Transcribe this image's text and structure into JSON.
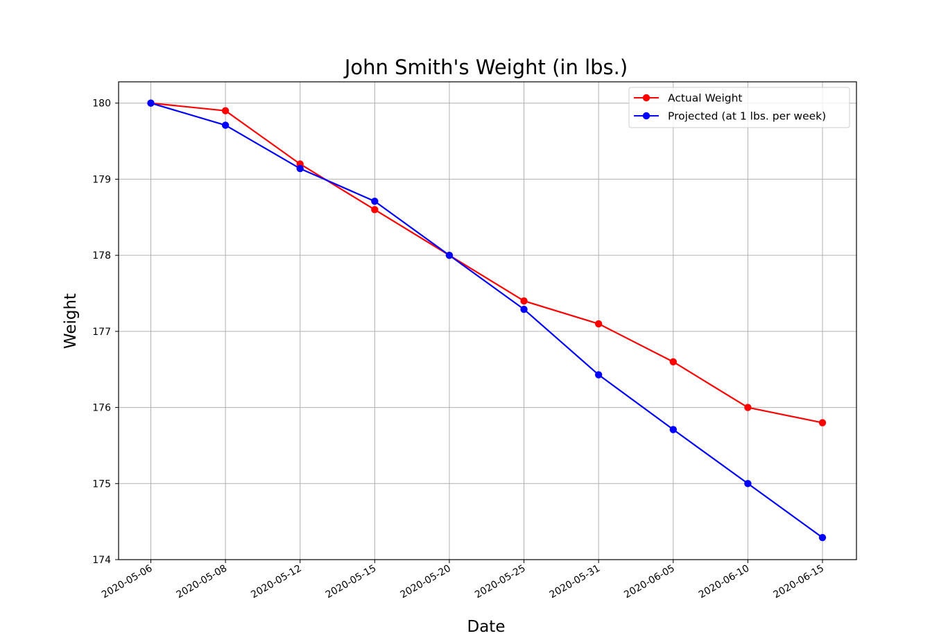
{
  "chart_data": {
    "type": "line",
    "title": "John Smith's Weight  (in lbs.)",
    "xlabel": "Date",
    "ylabel": "Weight",
    "categories": [
      "2020-05-06",
      "2020-05-08",
      "2020-05-12",
      "2020-05-15",
      "2020-05-20",
      "2020-05-25",
      "2020-05-31",
      "2020-06-05",
      "2020-06-10",
      "2020-06-15"
    ],
    "ylim": [
      174,
      180.28
    ],
    "yticks": [
      "174",
      "175",
      "176",
      "177",
      "178",
      "179",
      "180"
    ],
    "grid": true,
    "legend_position": "top-right",
    "series": [
      {
        "name": "Actual Weight",
        "color": "#ff0000",
        "values": [
          180,
          179.9,
          179.2,
          178.6,
          178.0,
          177.4,
          177.1,
          176.6,
          176.0,
          175.8
        ]
      },
      {
        "name": "Projected (at 1 lbs. per week)",
        "color": "#0000ff",
        "values": [
          180,
          179.71,
          179.14,
          178.71,
          178.0,
          177.29,
          176.43,
          175.71,
          175.0,
          174.29
        ]
      }
    ]
  }
}
